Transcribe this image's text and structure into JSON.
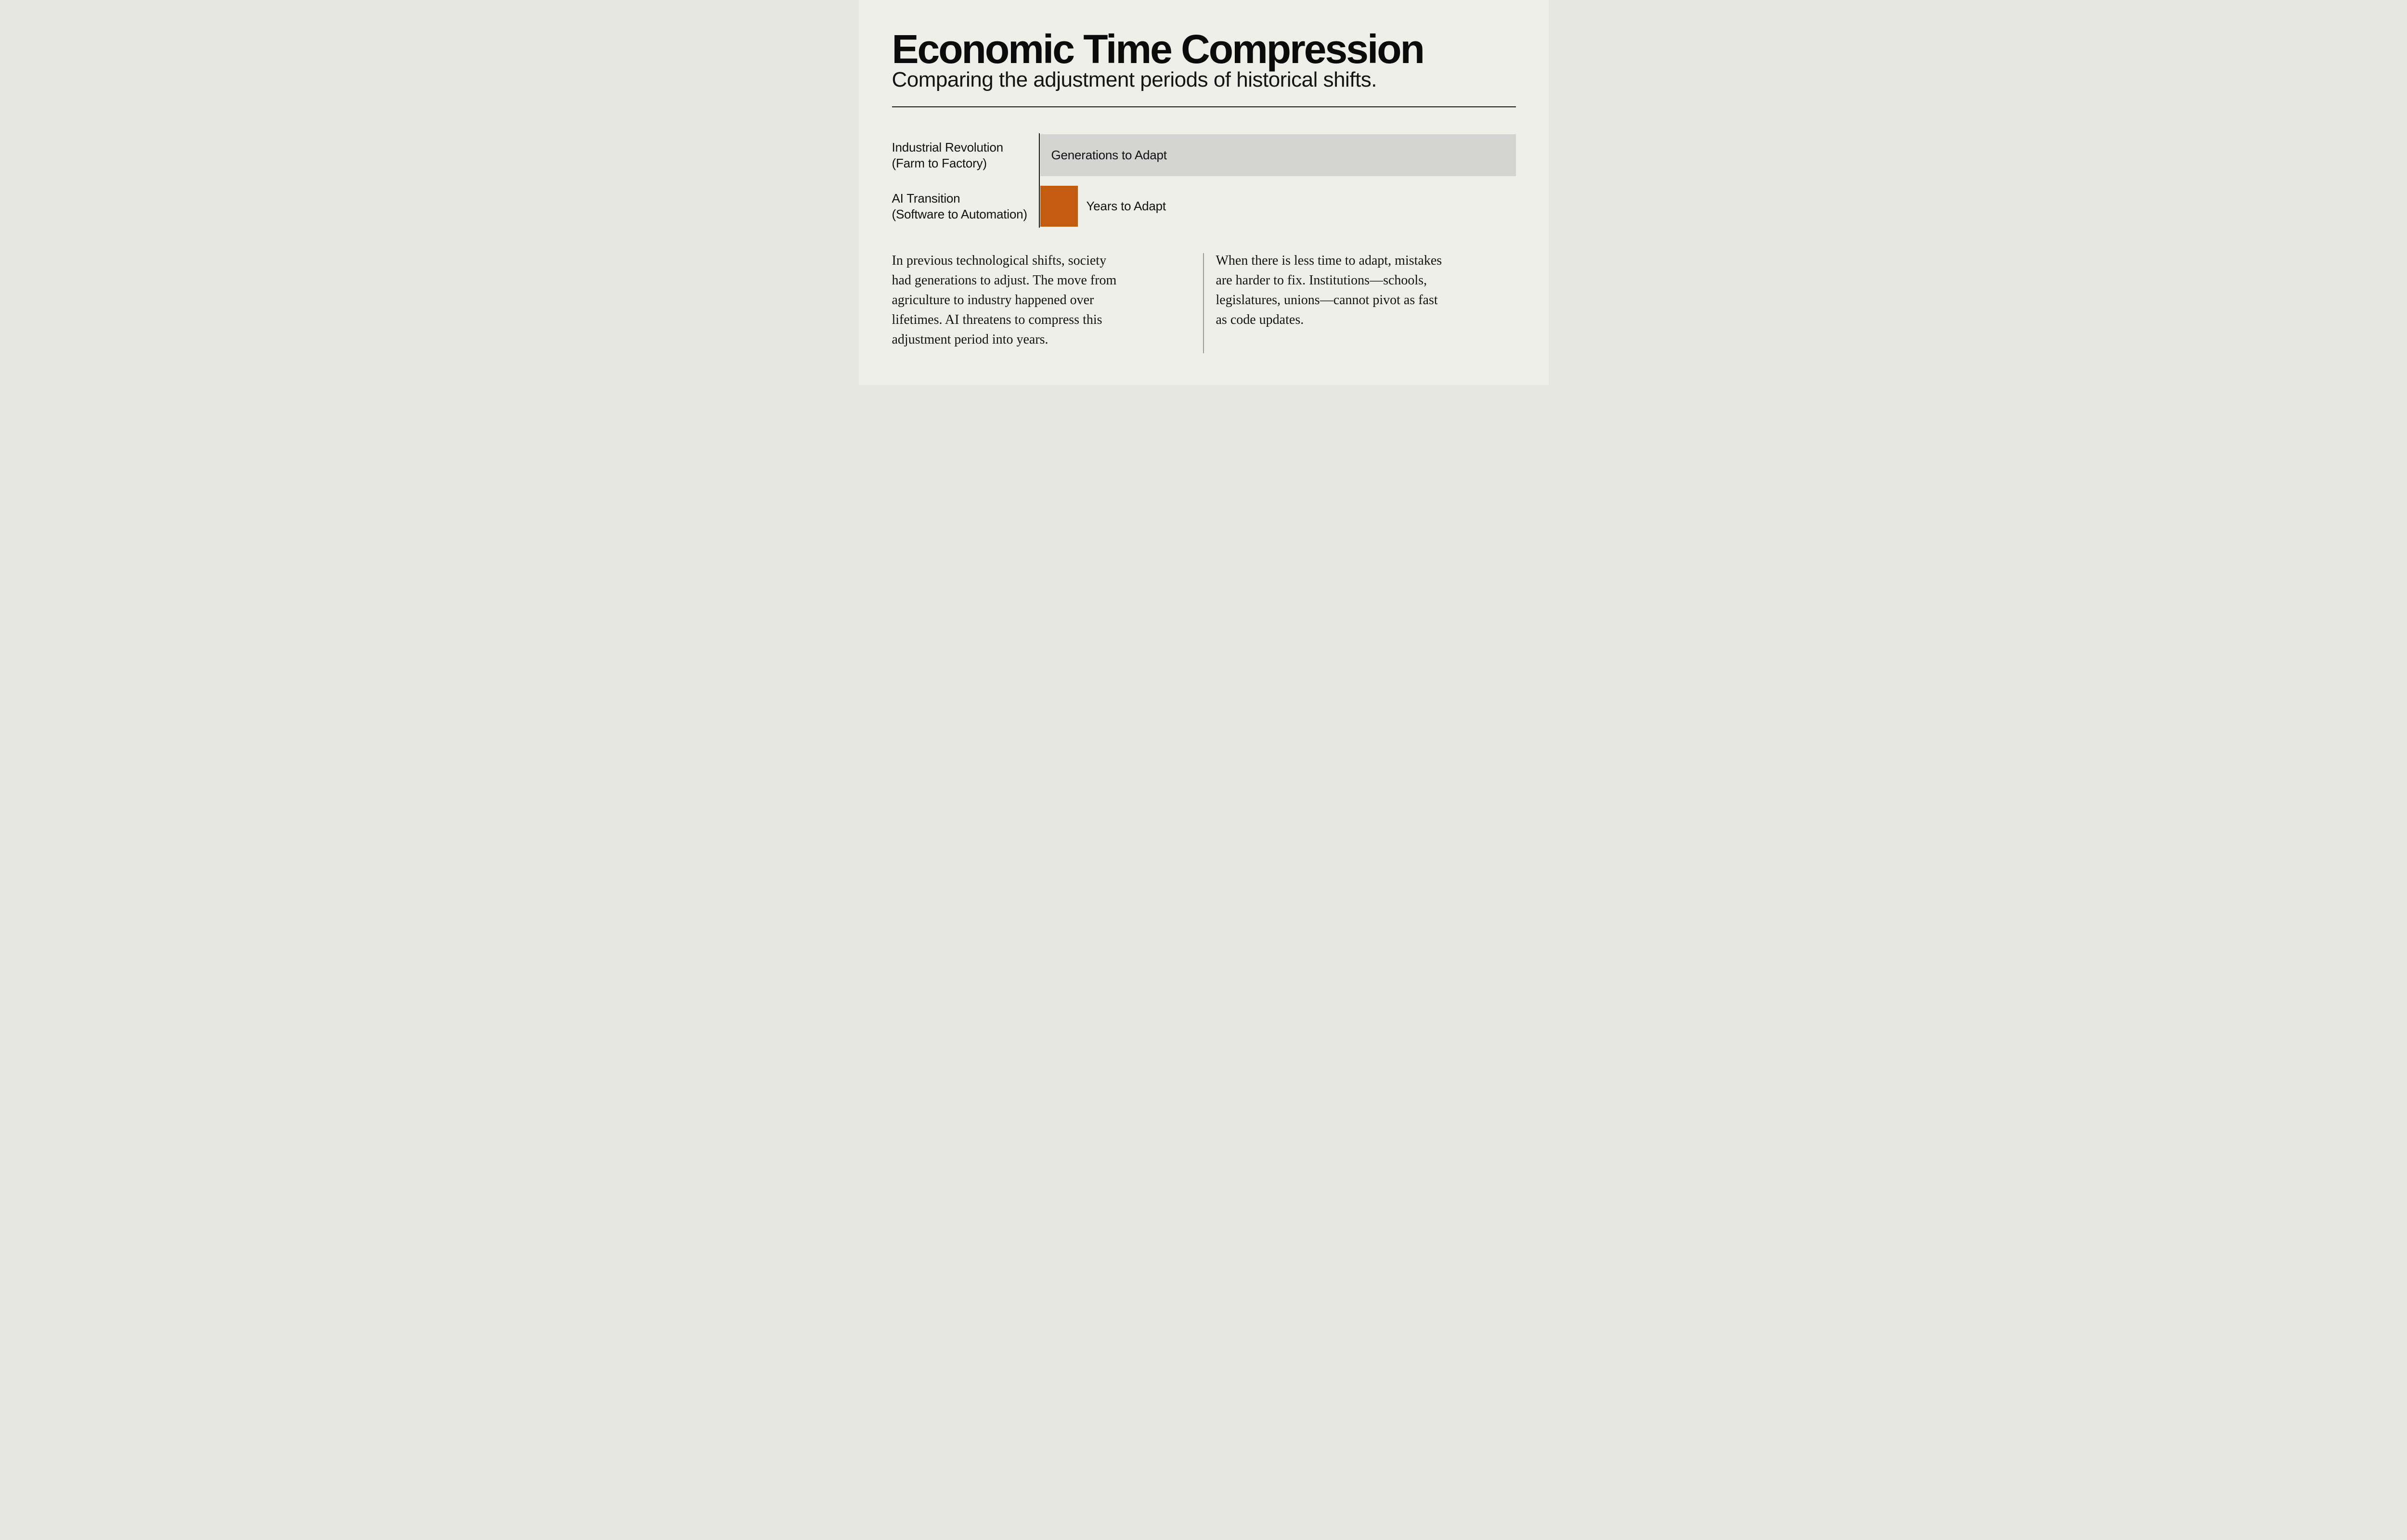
{
  "header": {
    "title": "Economic Time Compression",
    "subtitle": "Comparing the adjustment periods of historical shifts."
  },
  "colors": {
    "background": "#efefea",
    "bar_gray": "#d4d5d3",
    "bar_orange": "#c35c0e",
    "axis": "#141414",
    "rule": "#1c1c1c",
    "divider": "#9b9b97",
    "text": "#111111"
  },
  "chart_data": {
    "type": "bar",
    "orientation": "horizontal",
    "title": "Economic Time Compression",
    "subtitle": "Comparing the adjustment periods of historical shifts.",
    "xlabel": "",
    "ylabel": "",
    "grid": false,
    "legend": false,
    "axis_style": "single vertical baseline at left of bars",
    "categories": [
      "Industrial Revolution (Farm to Factory)",
      "AI Transition (Software to Automation)"
    ],
    "values_relative_pct": [
      100,
      7.9
    ],
    "bar_labels": [
      "Generations to Adapt",
      "Years to Adapt"
    ],
    "bar_colors": [
      "#d4d5d3",
      "#c35c0e"
    ],
    "rows": [
      {
        "label_line1": "Industrial Revolution",
        "label_line2": "(Farm to Factory)",
        "bar_label": "Generations to Adapt",
        "bar_label_position": "inside",
        "value_relative_pct": 100,
        "color": "#d4d5d3"
      },
      {
        "label_line1": "AI Transition",
        "label_line2": "(Software to Automation)",
        "bar_label": "Years to Adapt",
        "bar_label_position": "outside-right",
        "value_relative_pct": 7.9,
        "color": "#c35c0e"
      }
    ]
  },
  "columns": {
    "left_lines": [
      "In previous technological shifts, society",
      "had generations to adjust. The move from",
      "agriculture to industry happened over",
      "lifetimes. AI threatens to compress this",
      "adjustment period into years."
    ],
    "right_lines": [
      "When there is less time to adapt, mistakes",
      "are harder to fix. Institutions—schools,",
      "legislatures, unions—cannot pivot as fast",
      "as code updates."
    ]
  }
}
